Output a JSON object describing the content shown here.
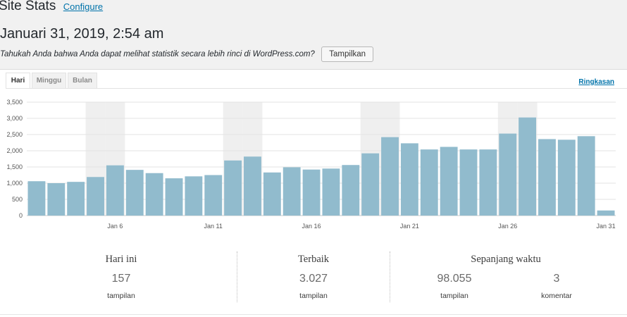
{
  "header": {
    "title": "Site Stats",
    "configure_label": "Configure",
    "date": "Januari 31, 2019, 2:54 am",
    "promo_text": "Tahukah Anda bahwa Anda dapat melihat statistik secara lebih rinci di WordPress.com?",
    "promo_button": "Tampilkan"
  },
  "tabs": [
    {
      "label": "Hari",
      "active": true
    },
    {
      "label": "Minggu",
      "active": false
    },
    {
      "label": "Bulan",
      "active": false
    }
  ],
  "summary_link": "Ringkasan",
  "chart_data": {
    "type": "bar",
    "categories": [
      "Jan 2",
      "Jan 3",
      "Jan 4",
      "Jan 5",
      "Jan 6",
      "Jan 7",
      "Jan 8",
      "Jan 9",
      "Jan 10",
      "Jan 11",
      "Jan 12",
      "Jan 13",
      "Jan 14",
      "Jan 15",
      "Jan 16",
      "Jan 17",
      "Jan 18",
      "Jan 19",
      "Jan 20",
      "Jan 21",
      "Jan 22",
      "Jan 23",
      "Jan 24",
      "Jan 25",
      "Jan 26",
      "Jan 27",
      "Jan 28",
      "Jan 29",
      "Jan 30",
      "Jan 31"
    ],
    "values": [
      1060,
      1000,
      1040,
      1190,
      1550,
      1410,
      1310,
      1150,
      1210,
      1250,
      1700,
      1820,
      1330,
      1490,
      1420,
      1450,
      1560,
      1920,
      2420,
      2230,
      2040,
      2120,
      2040,
      2040,
      2530,
      3027,
      2360,
      2340,
      2450,
      157
    ],
    "xtick_labels": [
      "Jan 6",
      "Jan 11",
      "Jan 16",
      "Jan 21",
      "Jan 26",
      "Jan 31"
    ],
    "xtick_index": [
      4,
      9,
      14,
      19,
      24,
      29
    ],
    "ytick_labels": [
      "0",
      "500",
      "1,000",
      "1,500",
      "2,000",
      "2,500",
      "3,000",
      "3,500"
    ],
    "ylim": [
      0,
      3500
    ],
    "weekend_index": [
      3,
      4,
      10,
      11,
      17,
      18,
      24,
      25
    ],
    "grid": true,
    "bar_color": "#91bbcd",
    "weekend_color": "#efefef"
  },
  "stats": {
    "today": {
      "heading": "Hari ini",
      "value": "157",
      "unit": "tampilan"
    },
    "best": {
      "heading": "Terbaik",
      "value": "3.027",
      "unit": "tampilan"
    },
    "alltime": {
      "heading": "Sepanjang waktu",
      "views": "98.055",
      "views_unit": "tampilan",
      "comments": "3",
      "comments_unit": "komentar"
    }
  }
}
